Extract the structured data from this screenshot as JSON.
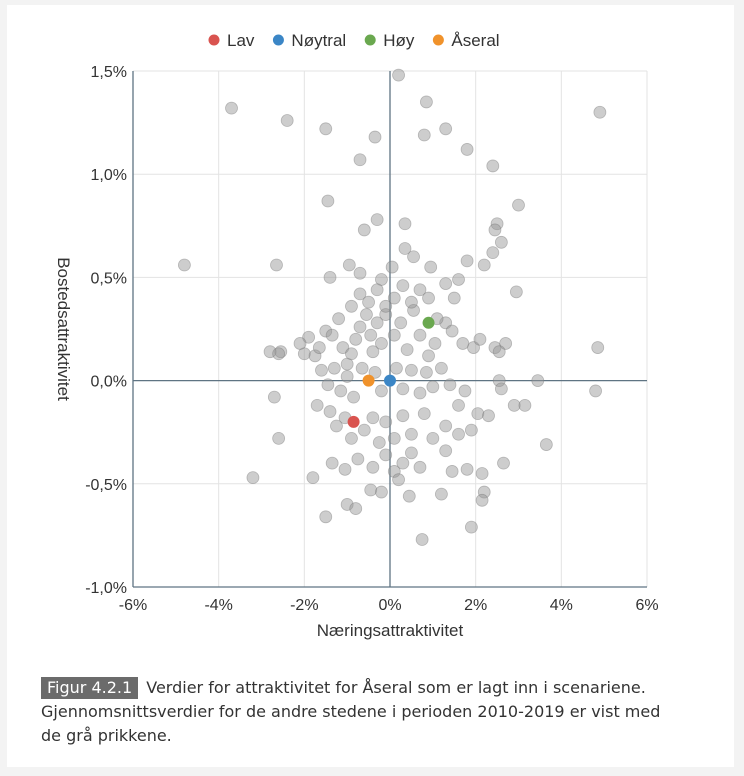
{
  "chart_data": {
    "type": "scatter",
    "xlabel": "Næringsattraktivitet",
    "ylabel": "Bostedsattraktivitet",
    "xlim": [
      -6,
      6
    ],
    "ylim": [
      -1.0,
      1.5
    ],
    "x_ticks": [
      "-6%",
      "-4%",
      "-2%",
      "0%",
      "2%",
      "4%",
      "6%"
    ],
    "y_ticks": [
      "1,5%",
      "1,0%",
      "0,5%",
      "0,0%",
      "-0,5%",
      "-1,0%"
    ],
    "grid": true,
    "legend_position": "top-center",
    "legend": [
      {
        "label": "Lav",
        "color": "#d9534f"
      },
      {
        "label": "Nøytral",
        "color": "#3b86c6"
      },
      {
        "label": "Høy",
        "color": "#6aa84f"
      },
      {
        "label": "Åseral",
        "color": "#f0922b"
      }
    ],
    "series": [
      {
        "name": "Lav",
        "color": "#d9534f",
        "points": [
          [
            -0.85,
            -0.2
          ]
        ]
      },
      {
        "name": "Nøytral",
        "color": "#3b86c6",
        "points": [
          [
            0.0,
            0.0
          ]
        ]
      },
      {
        "name": "Høy",
        "color": "#6aa84f",
        "points": [
          [
            0.9,
            0.28
          ]
        ]
      },
      {
        "name": "Åseral",
        "color": "#f0922b",
        "points": [
          [
            -0.5,
            0.0
          ]
        ]
      }
    ],
    "background_points": [
      [
        -3.7,
        1.32
      ],
      [
        -2.4,
        1.26
      ],
      [
        -1.5,
        1.22
      ],
      [
        -0.35,
        1.18
      ],
      [
        -0.7,
        1.07
      ],
      [
        0.2,
        1.48
      ],
      [
        0.85,
        1.35
      ],
      [
        0.8,
        1.19
      ],
      [
        1.3,
        1.22
      ],
      [
        1.8,
        1.12
      ],
      [
        2.4,
        1.04
      ],
      [
        4.9,
        1.3
      ],
      [
        -1.45,
        0.87
      ],
      [
        -0.3,
        0.78
      ],
      [
        0.35,
        0.76
      ],
      [
        -0.6,
        0.73
      ],
      [
        3.0,
        0.85
      ],
      [
        2.5,
        0.76
      ],
      [
        2.45,
        0.73
      ],
      [
        2.6,
        0.67
      ],
      [
        2.4,
        0.62
      ],
      [
        2.2,
        0.56
      ],
      [
        -4.8,
        0.56
      ],
      [
        -2.65,
        0.56
      ],
      [
        -1.4,
        0.5
      ],
      [
        -0.95,
        0.56
      ],
      [
        -0.7,
        0.52
      ],
      [
        -0.2,
        0.49
      ],
      [
        0.05,
        0.55
      ],
      [
        0.35,
        0.64
      ],
      [
        0.55,
        0.6
      ],
      [
        0.95,
        0.55
      ],
      [
        1.6,
        0.49
      ],
      [
        1.8,
        0.58
      ],
      [
        2.95,
        0.43
      ],
      [
        1.5,
        0.4
      ],
      [
        1.3,
        0.47
      ],
      [
        -1.9,
        0.21
      ],
      [
        -2.0,
        0.13
      ],
      [
        -2.55,
        0.14
      ],
      [
        -2.8,
        0.14
      ],
      [
        -2.6,
        0.13
      ],
      [
        -2.1,
        0.18
      ],
      [
        -1.75,
        0.12
      ],
      [
        -1.65,
        0.16
      ],
      [
        -1.5,
        0.24
      ],
      [
        -1.35,
        0.22
      ],
      [
        -1.2,
        0.3
      ],
      [
        -1.1,
        0.16
      ],
      [
        -1.0,
        0.08
      ],
      [
        -0.9,
        0.13
      ],
      [
        -0.8,
        0.2
      ],
      [
        -0.7,
        0.26
      ],
      [
        -0.55,
        0.32
      ],
      [
        -0.45,
        0.22
      ],
      [
        -0.4,
        0.14
      ],
      [
        -0.3,
        0.28
      ],
      [
        -0.2,
        0.18
      ],
      [
        -0.1,
        0.32
      ],
      [
        0.1,
        0.22
      ],
      [
        0.25,
        0.28
      ],
      [
        0.4,
        0.15
      ],
      [
        0.55,
        0.34
      ],
      [
        0.7,
        0.22
      ],
      [
        0.9,
        0.12
      ],
      [
        1.05,
        0.18
      ],
      [
        1.3,
        0.28
      ],
      [
        1.45,
        0.24
      ],
      [
        1.7,
        0.18
      ],
      [
        1.95,
        0.16
      ],
      [
        2.1,
        0.2
      ],
      [
        2.45,
        0.16
      ],
      [
        2.7,
        0.18
      ],
      [
        2.55,
        0.14
      ],
      [
        4.85,
        0.16
      ],
      [
        -0.7,
        0.42
      ],
      [
        -0.5,
        0.38
      ],
      [
        -0.3,
        0.44
      ],
      [
        -0.1,
        0.36
      ],
      [
        0.1,
        0.4
      ],
      [
        0.3,
        0.46
      ],
      [
        0.5,
        0.38
      ],
      [
        0.7,
        0.44
      ],
      [
        0.9,
        0.4
      ],
      [
        1.1,
        0.3
      ],
      [
        -0.9,
        0.36
      ],
      [
        -1.6,
        0.05
      ],
      [
        -1.45,
        -0.02
      ],
      [
        -1.3,
        0.06
      ],
      [
        -1.15,
        -0.05
      ],
      [
        -1.0,
        0.02
      ],
      [
        -0.85,
        -0.08
      ],
      [
        -0.65,
        0.06
      ],
      [
        -0.35,
        0.04
      ],
      [
        -0.2,
        -0.05
      ],
      [
        0.15,
        0.06
      ],
      [
        0.3,
        -0.04
      ],
      [
        0.5,
        0.05
      ],
      [
        0.7,
        -0.06
      ],
      [
        0.85,
        0.04
      ],
      [
        1.0,
        -0.03
      ],
      [
        1.2,
        0.06
      ],
      [
        1.4,
        -0.02
      ],
      [
        1.6,
        -0.12
      ],
      [
        1.75,
        -0.05
      ],
      [
        2.05,
        -0.16
      ],
      [
        2.3,
        -0.17
      ],
      [
        2.55,
        0.0
      ],
      [
        2.6,
        -0.04
      ],
      [
        2.9,
        -0.12
      ],
      [
        3.15,
        -0.12
      ],
      [
        3.45,
        0.0
      ],
      [
        4.8,
        -0.05
      ],
      [
        3.65,
        -0.31
      ],
      [
        -2.7,
        -0.08
      ],
      [
        -2.6,
        -0.28
      ],
      [
        -1.7,
        -0.12
      ],
      [
        -1.4,
        -0.15
      ],
      [
        -1.25,
        -0.22
      ],
      [
        -1.05,
        -0.18
      ],
      [
        -0.9,
        -0.28
      ],
      [
        -0.6,
        -0.24
      ],
      [
        -0.4,
        -0.18
      ],
      [
        -0.25,
        -0.3
      ],
      [
        -0.1,
        -0.2
      ],
      [
        0.1,
        -0.28
      ],
      [
        0.3,
        -0.17
      ],
      [
        0.5,
        -0.26
      ],
      [
        0.8,
        -0.16
      ],
      [
        1.0,
        -0.28
      ],
      [
        1.3,
        -0.22
      ],
      [
        1.6,
        -0.26
      ],
      [
        1.9,
        -0.24
      ],
      [
        -1.35,
        -0.4
      ],
      [
        -1.05,
        -0.43
      ],
      [
        -0.75,
        -0.38
      ],
      [
        -0.4,
        -0.42
      ],
      [
        -0.1,
        -0.36
      ],
      [
        0.1,
        -0.44
      ],
      [
        0.3,
        -0.4
      ],
      [
        0.5,
        -0.35
      ],
      [
        0.7,
        -0.42
      ],
      [
        1.3,
        -0.34
      ],
      [
        1.45,
        -0.44
      ],
      [
        1.8,
        -0.43
      ],
      [
        2.15,
        -0.45
      ],
      [
        2.65,
        -0.4
      ],
      [
        -3.2,
        -0.47
      ],
      [
        -1.8,
        -0.47
      ],
      [
        -1.5,
        -0.66
      ],
      [
        -1.0,
        -0.6
      ],
      [
        -0.8,
        -0.62
      ],
      [
        -0.45,
        -0.53
      ],
      [
        -0.2,
        -0.54
      ],
      [
        0.2,
        -0.48
      ],
      [
        0.45,
        -0.56
      ],
      [
        1.2,
        -0.55
      ],
      [
        2.2,
        -0.54
      ],
      [
        2.15,
        -0.58
      ],
      [
        1.9,
        -0.71
      ],
      [
        0.75,
        -0.77
      ]
    ]
  },
  "caption": {
    "label": "Figur 4.2.1",
    "text": "Verdier for attraktivitet for Åseral som er lagt inn i scenariene. Gjennomsnittsverdier for de andre stedene i perioden 2010-2019 er vist med de grå prikkene."
  }
}
